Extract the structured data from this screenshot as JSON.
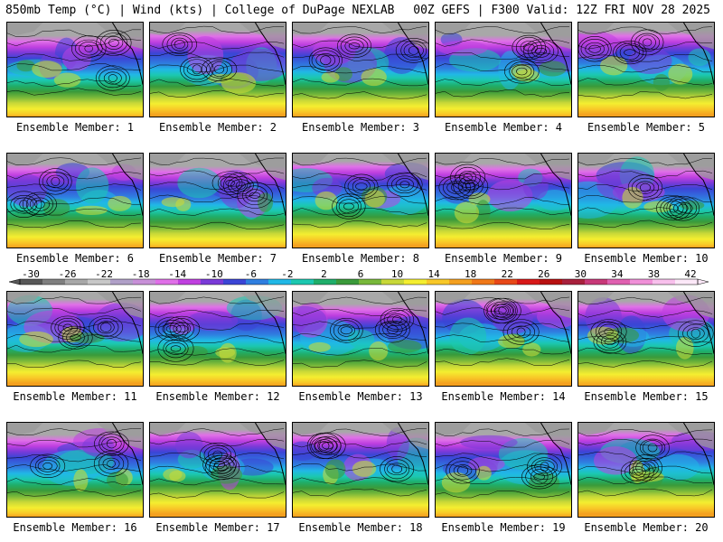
{
  "header": {
    "left": "850mb Temp (°C) | Wind (kts) | College of DuPage NEXLAB",
    "right": "00Z GEFS | F300 Valid: 12Z FRI NOV 28 2025"
  },
  "panels": [
    {
      "member": 1,
      "caption": "Ensemble Member: 1"
    },
    {
      "member": 2,
      "caption": "Ensemble Member: 2"
    },
    {
      "member": 3,
      "caption": "Ensemble Member: 3"
    },
    {
      "member": 4,
      "caption": "Ensemble Member: 4"
    },
    {
      "member": 5,
      "caption": "Ensemble Member: 5"
    },
    {
      "member": 6,
      "caption": "Ensemble Member: 6"
    },
    {
      "member": 7,
      "caption": "Ensemble Member: 7"
    },
    {
      "member": 8,
      "caption": "Ensemble Member: 8"
    },
    {
      "member": 9,
      "caption": "Ensemble Member: 9"
    },
    {
      "member": 10,
      "caption": "Ensemble Member: 10"
    },
    {
      "member": 11,
      "caption": "Ensemble Member: 11"
    },
    {
      "member": 12,
      "caption": "Ensemble Member: 12"
    },
    {
      "member": 13,
      "caption": "Ensemble Member: 13"
    },
    {
      "member": 14,
      "caption": "Ensemble Member: 14"
    },
    {
      "member": 15,
      "caption": "Ensemble Member: 15"
    },
    {
      "member": 16,
      "caption": "Ensemble Member: 16"
    },
    {
      "member": 17,
      "caption": "Ensemble Member: 17"
    },
    {
      "member": 18,
      "caption": "Ensemble Member: 18"
    },
    {
      "member": 19,
      "caption": "Ensemble Member: 19"
    },
    {
      "member": 20,
      "caption": "Ensemble Member: 20"
    }
  ],
  "colorbar": {
    "labels": [
      "-30",
      "-26",
      "-22",
      "-18",
      "-14",
      "-10",
      "-6",
      "-2",
      "2",
      "6",
      "10",
      "14",
      "18",
      "22",
      "26",
      "30",
      "34",
      "38",
      "42"
    ],
    "colors": [
      "#585858",
      "#808080",
      "#a8a8a8",
      "#c8c8c8",
      "#b0a0c8",
      "#c890d8",
      "#e070e8",
      "#c040e0",
      "#7a3ad8",
      "#3b45d6",
      "#2f7fe0",
      "#21b8e6",
      "#1cc8b0",
      "#1fae6a",
      "#3a9a3a",
      "#78b83a",
      "#c8d838",
      "#f4ee30",
      "#f8c828",
      "#f4a020",
      "#f07818",
      "#e84818",
      "#d81818",
      "#b81010",
      "#a8203c",
      "#c83878",
      "#e060b0",
      "#f090d8",
      "#f8c0ec",
      "#fce8f8"
    ]
  },
  "theme": {
    "temp_stops": [
      "#f4a020",
      "#f8c828",
      "#f4ee30",
      "#c8d838",
      "#78b83a",
      "#3a9a3a",
      "#1fae6a",
      "#1cc8b0",
      "#21b8e6",
      "#2f7fe0",
      "#3b45d6",
      "#7a3ad8",
      "#c040e0",
      "#e070e8",
      "#a8a8a8"
    ],
    "contour": "#000000",
    "coast": "#000000"
  }
}
